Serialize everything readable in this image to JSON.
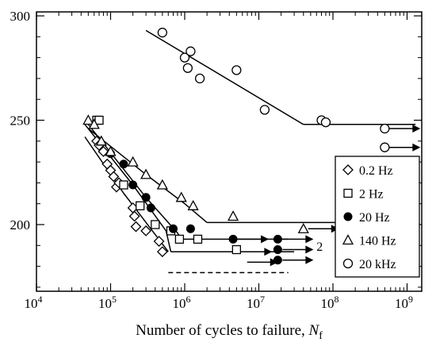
{
  "chart_data": {
    "type": "scatter",
    "title": "",
    "xlabel": "Number of cycles to failure, ",
    "xlabel_subscript_var": "N",
    "xlabel_subscript": "f",
    "ylabel": "",
    "x_scale": "log",
    "xlim": [
      10000,
      2000000000
    ],
    "ylim": [
      170,
      300
    ],
    "x_ticks": [
      {
        "value": 10000,
        "label_base": "10",
        "label_exp": "4"
      },
      {
        "value": 100000,
        "label_base": "10",
        "label_exp": "5"
      },
      {
        "value": 1000000,
        "label_base": "10",
        "label_exp": "6"
      },
      {
        "value": 10000000,
        "label_base": "10",
        "label_exp": "7"
      },
      {
        "value": 100000000,
        "label_base": "10",
        "label_exp": "8"
      },
      {
        "value": 1000000000,
        "label_base": "10",
        "label_exp": "9"
      }
    ],
    "y_ticks": [
      {
        "value": 200,
        "label": "200"
      },
      {
        "value": 250,
        "label": "250"
      },
      {
        "value": 300,
        "label": "300"
      }
    ],
    "grid": false,
    "legend_position": "right",
    "annotations": [
      {
        "text": "2",
        "x": 60000000,
        "y": 192
      }
    ],
    "series": [
      {
        "name": "0.2 Hz",
        "marker": "diamond",
        "points": [
          [
            65000,
            240
          ],
          [
            70000,
            238
          ],
          [
            80000,
            235
          ],
          [
            90000,
            229
          ],
          [
            100000,
            226
          ],
          [
            110000,
            223
          ],
          [
            120000,
            218
          ],
          [
            130000,
            220
          ],
          [
            200000,
            208
          ],
          [
            210000,
            204
          ],
          [
            220000,
            199
          ],
          [
            300000,
            197
          ],
          [
            450000,
            192
          ],
          [
            500000,
            187
          ]
        ],
        "runouts": [],
        "fit": [
          [
            45000,
            242
          ],
          [
            150000,
            215
          ],
          [
            600000,
            187
          ]
        ],
        "fit_style": "solid",
        "tail": [
          [
            600000,
            177
          ],
          [
            25000000,
            177
          ]
        ],
        "tail_style": "dashed"
      },
      {
        "name": "2 Hz",
        "marker": "square",
        "points": [
          [
            65000,
            250
          ],
          [
            70000,
            250
          ],
          [
            150000,
            219
          ],
          [
            250000,
            209
          ],
          [
            400000,
            200
          ],
          [
            650000,
            197
          ],
          [
            850000,
            193
          ],
          [
            1500000,
            193
          ],
          [
            5000000,
            188
          ]
        ],
        "runouts": [
          [
            5000000,
            187
          ],
          [
            6000000,
            182
          ]
        ],
        "fit": [
          [
            45000,
            248
          ],
          [
            200000,
            219
          ],
          [
            560000,
            197
          ],
          [
            650000,
            187
          ]
        ],
        "fit_style": "solid",
        "tail": [
          [
            650000,
            187
          ],
          [
            30000000,
            187
          ]
        ],
        "tail_style": "solid"
      },
      {
        "name": "20 Hz",
        "marker": "filled-circle",
        "points": [
          [
            100000,
            234
          ],
          [
            150000,
            229
          ],
          [
            200000,
            219
          ],
          [
            300000,
            213
          ],
          [
            350000,
            208
          ],
          [
            700000,
            198
          ],
          [
            1200000,
            198
          ],
          [
            4500000,
            193
          ],
          [
            18000000,
            193
          ],
          [
            18000000,
            188
          ],
          [
            18000000,
            183
          ]
        ],
        "runouts": [
          [
            4500000,
            193
          ],
          [
            18000000,
            193
          ],
          [
            18000000,
            188
          ],
          [
            18000000,
            183
          ]
        ],
        "fit": [
          [
            50000,
            248
          ],
          [
            300000,
            213
          ],
          [
            800000,
            196
          ],
          [
            900000,
            193
          ]
        ],
        "fit_style": "solid",
        "tail": [
          [
            900000,
            193
          ],
          [
            25000000,
            193
          ]
        ],
        "tail_style": "solid"
      },
      {
        "name": "140 Hz",
        "marker": "triangle",
        "points": [
          [
            50000,
            250
          ],
          [
            60000,
            248
          ],
          [
            75000,
            240
          ],
          [
            100000,
            235
          ],
          [
            200000,
            230
          ],
          [
            300000,
            224
          ],
          [
            500000,
            219
          ],
          [
            900000,
            213
          ],
          [
            1300000,
            209
          ],
          [
            4500000,
            204
          ],
          [
            40000000,
            198
          ]
        ],
        "runouts": [
          [
            40000000,
            198
          ]
        ],
        "fit": [
          [
            50000,
            246
          ],
          [
            300000,
            224
          ],
          [
            1000000,
            210
          ],
          [
            2000000,
            201
          ]
        ],
        "fit_style": "solid",
        "tail": [
          [
            2000000,
            201
          ],
          [
            150000000,
            201
          ]
        ],
        "tail_style": "solid"
      },
      {
        "name": "20 kHz",
        "marker": "open-circle",
        "points": [
          [
            500000,
            292
          ],
          [
            1000000,
            280
          ],
          [
            1100000,
            275
          ],
          [
            1200000,
            283
          ],
          [
            1600000,
            270
          ],
          [
            5000000,
            274
          ],
          [
            12000000,
            255
          ],
          [
            70000000,
            250
          ],
          [
            80000000,
            249
          ],
          [
            500000000,
            246
          ],
          [
            500000000,
            237
          ]
        ],
        "runouts": [
          [
            500000000,
            246
          ],
          [
            500000000,
            237
          ]
        ],
        "fit": [
          [
            300000,
            293
          ],
          [
            40000000,
            248
          ]
        ],
        "fit_style": "solid",
        "tail": [
          [
            40000000,
            248
          ],
          [
            1300000000,
            248
          ]
        ],
        "tail_style": "solid"
      }
    ]
  }
}
